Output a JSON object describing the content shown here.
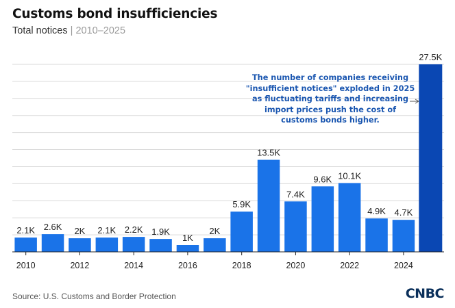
{
  "header": {
    "title": "Customs bond insufficiencies",
    "subtitle_main": "Total notices",
    "subtitle_sep": " | ",
    "subtitle_range": "2010–2025"
  },
  "footer": {
    "source": "Source: U.S. Customs and Border Protection",
    "logo_text": "CNBC"
  },
  "colors": {
    "bar": "#1a73e8",
    "highlight_bar": "#0a47b3",
    "annotation": "#1a56b0",
    "gridline": "#d9d9d9"
  },
  "chart_data": {
    "type": "bar",
    "title": "Customs bond insufficiencies",
    "subtitle": "Total notices | 2010–2025",
    "categories": [
      "2010",
      "2011",
      "2012",
      "2013",
      "2014",
      "2015",
      "2016",
      "2017",
      "2018",
      "2019",
      "2020",
      "2021",
      "2022",
      "2023",
      "2024",
      "2025"
    ],
    "values": [
      2.1,
      2.6,
      2.0,
      2.1,
      2.2,
      1.9,
      1.0,
      2.0,
      5.9,
      13.5,
      7.4,
      9.6,
      10.1,
      4.9,
      4.7,
      27.5
    ],
    "value_labels": [
      "2.1K",
      "2.6K",
      "2K",
      "2.1K",
      "2.2K",
      "1.9K",
      "1K",
      "2K",
      "5.9K",
      "13.5K",
      "7.4K",
      "9.6K",
      "10.1K",
      "4.9K",
      "4.7K",
      "27.5K"
    ],
    "x_tick_labels": [
      "2010",
      "2012",
      "2014",
      "2016",
      "2018",
      "2020",
      "2022",
      "2024"
    ],
    "highlight_category": "2025",
    "ylim": [
      0,
      27.5
    ],
    "y_unit": "thousands of notices",
    "grid": true,
    "annotation": "The number of companies receiving \"insufficient notices\" exploded in 2025 as fluctuating tariffs and increasing import prices push the cost of customs bonds higher.",
    "xlabel": "",
    "ylabel": ""
  }
}
